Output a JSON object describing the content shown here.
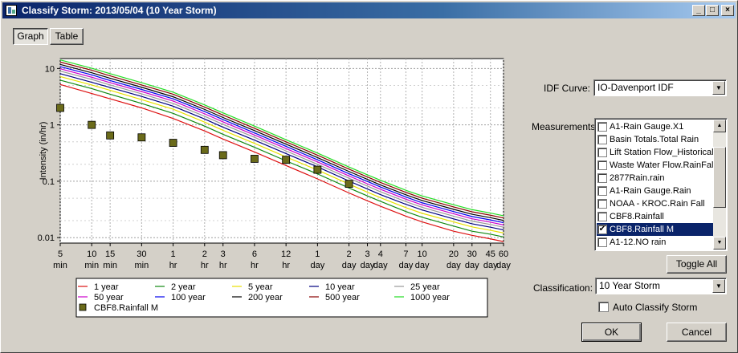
{
  "window": {
    "title": "Classify Storm: 2013/05/04 (10 Year Storm)",
    "controls": {
      "minimize": "_",
      "maximize": "□",
      "close": "×"
    }
  },
  "view_tabs": {
    "graph": "Graph",
    "table": "Table",
    "active": "Graph"
  },
  "chart_data": {
    "type": "line",
    "ylabel": "Intensity (in/hr)",
    "y_scale": "log",
    "ylim": [
      0.008,
      15
    ],
    "y_ticks": [
      "10",
      "1",
      "0.1",
      "0.01"
    ],
    "x_tick_labels": [
      [
        "5",
        "min"
      ],
      [
        "10",
        "min"
      ],
      [
        "15",
        "min"
      ],
      [
        "30",
        "min"
      ],
      [
        "1",
        "hr"
      ],
      [
        "2",
        "hr"
      ],
      [
        "3",
        "hr"
      ],
      [
        "6",
        "hr"
      ],
      [
        "12",
        "hr"
      ],
      [
        "1",
        "day"
      ],
      [
        "2",
        "day"
      ],
      [
        "3",
        "day"
      ],
      [
        "4",
        "day"
      ],
      [
        "7",
        "day"
      ],
      [
        "10",
        "day"
      ],
      [
        "20",
        "day"
      ],
      [
        "30",
        "day"
      ],
      [
        "45",
        "day"
      ],
      [
        "60",
        "day"
      ]
    ],
    "x_positions_minutes": [
      5,
      10,
      15,
      30,
      60,
      120,
      180,
      360,
      720,
      1440,
      2880,
      4320,
      5760,
      10080,
      14400,
      28800,
      43200,
      64800,
      86400
    ],
    "grid": true,
    "series": [
      {
        "name": "1 year",
        "color": "#dd1111",
        "values": [
          5.2,
          3.6,
          2.9,
          2.0,
          1.3,
          0.78,
          0.56,
          0.33,
          0.19,
          0.11,
          0.062,
          0.045,
          0.036,
          0.024,
          0.019,
          0.013,
          0.011,
          0.0095,
          0.0085
        ]
      },
      {
        "name": "2 year",
        "color": "#118811",
        "values": [
          6.2,
          4.4,
          3.5,
          2.4,
          1.6,
          0.95,
          0.68,
          0.4,
          0.23,
          0.135,
          0.076,
          0.055,
          0.044,
          0.029,
          0.023,
          0.016,
          0.013,
          0.0115,
          0.0103
        ]
      },
      {
        "name": "5 year",
        "color": "#e8e000",
        "values": [
          7.2,
          5.1,
          4.1,
          2.8,
          1.9,
          1.12,
          0.8,
          0.47,
          0.27,
          0.158,
          0.089,
          0.064,
          0.051,
          0.034,
          0.027,
          0.019,
          0.0155,
          0.0135,
          0.0121
        ]
      },
      {
        "name": "10 year",
        "color": "#000080",
        "values": [
          8.1,
          5.7,
          4.6,
          3.2,
          2.15,
          1.27,
          0.91,
          0.535,
          0.31,
          0.18,
          0.101,
          0.073,
          0.058,
          0.039,
          0.031,
          0.0215,
          0.0176,
          0.0153,
          0.0137
        ]
      },
      {
        "name": "25 year",
        "color": "#999999",
        "values": [
          9.0,
          6.4,
          5.1,
          3.55,
          2.4,
          1.42,
          1.02,
          0.6,
          0.345,
          0.2,
          0.113,
          0.082,
          0.065,
          0.0435,
          0.0345,
          0.024,
          0.0196,
          0.0171,
          0.0153
        ]
      },
      {
        "name": "50 year",
        "color": "#cc00cc",
        "values": [
          9.9,
          7.0,
          5.6,
          3.9,
          2.65,
          1.57,
          1.13,
          0.66,
          0.38,
          0.22,
          0.124,
          0.09,
          0.072,
          0.048,
          0.038,
          0.0265,
          0.0216,
          0.0188,
          0.0168
        ]
      },
      {
        "name": "100 year",
        "color": "#0000ee",
        "values": [
          10.8,
          7.7,
          6.1,
          4.25,
          2.9,
          1.72,
          1.24,
          0.72,
          0.415,
          0.24,
          0.136,
          0.099,
          0.079,
          0.0525,
          0.0415,
          0.029,
          0.0237,
          0.0206,
          0.0184
        ]
      },
      {
        "name": "200 year",
        "color": "#000000",
        "values": [
          11.8,
          8.4,
          6.7,
          4.65,
          3.15,
          1.88,
          1.35,
          0.79,
          0.455,
          0.263,
          0.149,
          0.108,
          0.086,
          0.0575,
          0.0455,
          0.0318,
          0.026,
          0.0226,
          0.0202
        ]
      },
      {
        "name": "500 year",
        "color": "#880000",
        "values": [
          13.0,
          9.3,
          7.4,
          5.1,
          3.5,
          2.07,
          1.49,
          0.87,
          0.5,
          0.29,
          0.164,
          0.119,
          0.095,
          0.0635,
          0.05,
          0.035,
          0.0287,
          0.025,
          0.0223
        ]
      },
      {
        "name": "1000 year",
        "color": "#22dd22",
        "values": [
          14.2,
          10.1,
          8.1,
          5.6,
          3.8,
          2.26,
          1.63,
          0.95,
          0.545,
          0.316,
          0.179,
          0.13,
          0.104,
          0.069,
          0.055,
          0.0383,
          0.0314,
          0.0273,
          0.0244
        ]
      }
    ],
    "measured": {
      "name": "CBF8.Rainfall M",
      "color": "#6b6b1a",
      "x_minutes": [
        5,
        10,
        15,
        30,
        60,
        120,
        180,
        360,
        720,
        1440,
        2880
      ],
      "values": [
        2.0,
        1.0,
        0.65,
        0.6,
        0.48,
        0.36,
        0.29,
        0.25,
        0.24,
        0.16,
        0.09
      ]
    }
  },
  "idf": {
    "label": "IDF Curve:",
    "value": "IO-Davenport IDF"
  },
  "measurements": {
    "label": "Measurements:",
    "items": [
      {
        "label": "A1-Rain Gauge.X1",
        "checked": false,
        "selected": false
      },
      {
        "label": "Basin Totals.Total Rain",
        "checked": false,
        "selected": false
      },
      {
        "label": "Lift Station Flow_Historical.F",
        "checked": false,
        "selected": false
      },
      {
        "label": "Waste Water Flow.RainFall",
        "checked": false,
        "selected": false
      },
      {
        "label": "2877Rain.rain",
        "checked": false,
        "selected": false
      },
      {
        "label": "A1-Rain Gauge.Rain",
        "checked": false,
        "selected": false
      },
      {
        "label": "NOAA - KROC.Rain Fall",
        "checked": false,
        "selected": false
      },
      {
        "label": "CBF8.Rainfall",
        "checked": false,
        "selected": false
      },
      {
        "label": "CBF8.Rainfall M",
        "checked": true,
        "selected": true
      },
      {
        "label": "A1-12.NO rain",
        "checked": false,
        "selected": false
      }
    ],
    "toggle_all": "Toggle All"
  },
  "classification": {
    "label": "Classification:",
    "value": "10 Year Storm"
  },
  "auto_classify": {
    "label": "Auto Classify Storm",
    "checked": false
  },
  "buttons": {
    "ok": "OK",
    "cancel": "Cancel"
  },
  "icons": {
    "check": "✔",
    "dropdown": "▼",
    "scroll_up": "▲",
    "scroll_down": "▼"
  }
}
